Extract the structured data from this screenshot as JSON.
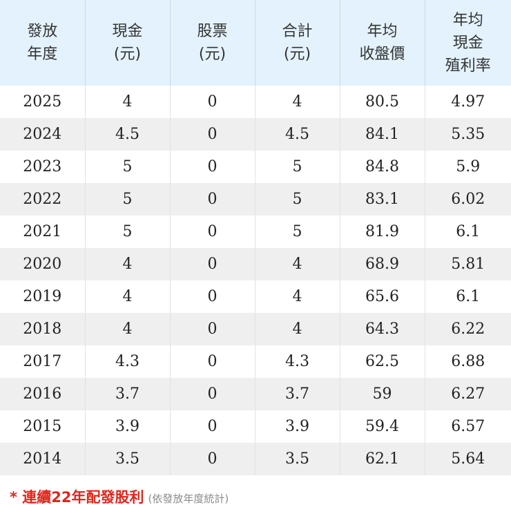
{
  "table": {
    "headers": [
      [
        "發放",
        "年度"
      ],
      [
        "現金",
        "(元)"
      ],
      [
        "股票",
        "(元)"
      ],
      [
        "合計",
        "(元)"
      ],
      [
        "年均",
        "收盤價"
      ],
      [
        "年均",
        "現金",
        "殖利率"
      ]
    ],
    "rows": [
      [
        "2025",
        "4",
        "0",
        "4",
        "80.5",
        "4.97"
      ],
      [
        "2024",
        "4.5",
        "0",
        "4.5",
        "84.1",
        "5.35"
      ],
      [
        "2023",
        "5",
        "0",
        "5",
        "84.8",
        "5.9"
      ],
      [
        "2022",
        "5",
        "0",
        "5",
        "83.1",
        "6.02"
      ],
      [
        "2021",
        "5",
        "0",
        "5",
        "81.9",
        "6.1"
      ],
      [
        "2020",
        "4",
        "0",
        "4",
        "68.9",
        "5.81"
      ],
      [
        "2019",
        "4",
        "0",
        "4",
        "65.6",
        "6.1"
      ],
      [
        "2018",
        "4",
        "0",
        "4",
        "64.3",
        "6.22"
      ],
      [
        "2017",
        "4.3",
        "0",
        "4.3",
        "62.5",
        "6.88"
      ],
      [
        "2016",
        "3.7",
        "0",
        "3.7",
        "59",
        "6.27"
      ],
      [
        "2015",
        "3.9",
        "0",
        "3.9",
        "59.4",
        "6.57"
      ],
      [
        "2014",
        "3.5",
        "0",
        "3.5",
        "62.1",
        "5.64"
      ]
    ]
  },
  "footnote": {
    "main": "* 連續22年配發股利",
    "sub": "(依發放年度統計)"
  },
  "colors": {
    "header_bg": "#e3f2fc",
    "row_alt_bg": "#efefef",
    "footnote_red": "#e0261f",
    "footnote_gray": "#8a8a8a"
  }
}
